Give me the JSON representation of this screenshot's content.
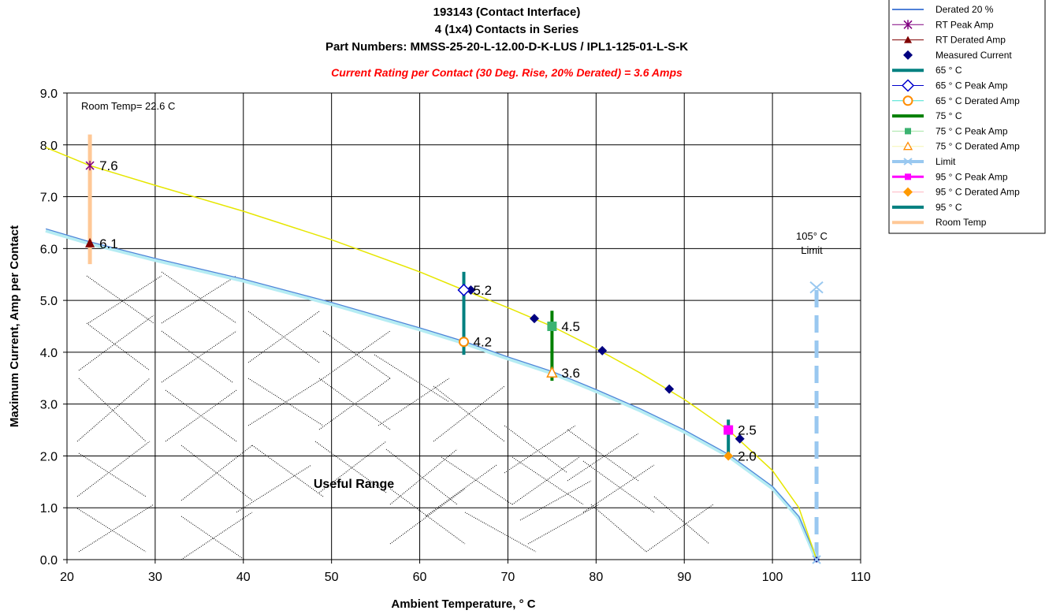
{
  "chart_data": {
    "type": "line",
    "title": [
      "193143 (Contact Interface)",
      "4 (1x4) Contacts in Series",
      "Part Numbers: MMSS-25-20-L-12.00-D-K-LUS / IPL1-125-01-L-S-K"
    ],
    "subtitle": "Current Rating per Contact (30 Deg. Rise, 20% Derated) = 3.6 Amps",
    "xlabel": "Ambient Temperature, ° C",
    "ylabel": "Maximum Current, Amp per Contact",
    "xlim": [
      20,
      110
    ],
    "ylim": [
      0,
      9
    ],
    "x_ticks": [
      "20",
      "30",
      "40",
      "50",
      "60",
      "70",
      "80",
      "90",
      "100",
      "110"
    ],
    "y_ticks": [
      "0.0",
      "1.0",
      "2.0",
      "3.0",
      "4.0",
      "5.0",
      "6.0",
      "7.0",
      "8.0",
      "9.0"
    ],
    "grid": true,
    "legend_position": "top-right",
    "legend": [
      "Derated 20 %",
      "RT Peak Amp",
      "RT Derated Amp",
      "Measured Current",
      "65 ° C",
      "65  ° C Peak Amp",
      "65  ° C Derated Amp",
      "75  ° C",
      "75  ° C Peak Amp",
      "75  ° C Derated Amp",
      "Limit",
      "95  ° C Peak Amp",
      "95  ° C Derated Amp",
      "95  ° C",
      "Room Temp"
    ],
    "annotations": {
      "room_temp": "Room Temp= 22.6 C",
      "limit_line1": "105° C",
      "limit_line2": "Limit",
      "useful_range": "Useful Range"
    },
    "series": [
      {
        "name": "Derated 20 %",
        "color": "#4f81d8",
        "x": [
          17.6,
          22.6,
          30,
          40,
          50,
          60,
          65,
          70,
          75,
          80,
          85,
          90,
          95,
          100,
          103,
          105
        ],
        "y": [
          6.35,
          6.1,
          5.78,
          5.38,
          4.93,
          4.44,
          4.18,
          3.88,
          3.6,
          3.25,
          2.88,
          2.47,
          2.0,
          1.38,
          0.8,
          0.0
        ]
      },
      {
        "name": "Peak curve",
        "color": "#e6e600",
        "x": [
          17.6,
          22.6,
          30,
          40,
          50,
          60,
          65,
          70,
          75,
          80,
          85,
          90,
          95,
          100,
          103,
          105
        ],
        "y": [
          7.95,
          7.6,
          7.22,
          6.72,
          6.17,
          5.55,
          5.2,
          4.86,
          4.5,
          4.07,
          3.6,
          3.09,
          2.5,
          1.72,
          1.0,
          0.0
        ]
      },
      {
        "name": "Measured Current",
        "color": "#000080",
        "marker": "diamond",
        "x": [
          65.8,
          73.0,
          80.7,
          88.3,
          96.3,
          105
        ],
        "y": [
          5.2,
          4.65,
          4.03,
          3.29,
          2.33,
          0.0
        ]
      },
      {
        "name": "RT Peak Amp",
        "color": "#800080",
        "marker": "star",
        "x": [
          22.6
        ],
        "y": [
          7.6
        ],
        "label": "7.6"
      },
      {
        "name": "RT Derated Amp",
        "color": "#800000",
        "marker": "triangle",
        "x": [
          22.6
        ],
        "y": [
          6.1
        ],
        "label": "6.1"
      },
      {
        "name": "65  ° C Peak Amp",
        "color": "#0000cc",
        "marker": "diamond-open",
        "x": [
          65
        ],
        "y": [
          5.2
        ],
        "label": "5.2"
      },
      {
        "name": "65  ° C Derated Amp",
        "color": "#ff8c00",
        "marker": "circle-open",
        "x": [
          65
        ],
        "y": [
          4.2
        ],
        "label": "4.2"
      },
      {
        "name": "75  ° C Peak Amp",
        "color": "#3cb371",
        "marker": "square",
        "x": [
          75
        ],
        "y": [
          4.5
        ],
        "label": "4.5"
      },
      {
        "name": "75  ° C Derated Amp",
        "color": "#ff8c00",
        "marker": "triangle-open",
        "x": [
          75
        ],
        "y": [
          3.6
        ],
        "label": "3.6"
      },
      {
        "name": "95  ° C Peak Amp",
        "color": "#ff00ff",
        "marker": "square",
        "x": [
          95
        ],
        "y": [
          2.5
        ],
        "label": "2.5"
      },
      {
        "name": "95  ° C Derated Amp",
        "color": "#ff9900",
        "marker": "diamond",
        "x": [
          95
        ],
        "y": [
          2.0
        ],
        "label": "2.0"
      },
      {
        "name": "65 ° C",
        "color": "#008080",
        "type": "vline",
        "x": 65,
        "y": [
          3.95,
          5.55
        ]
      },
      {
        "name": "75  ° C",
        "color": "#008000",
        "type": "vline",
        "x": 75,
        "y": [
          3.45,
          4.8
        ]
      },
      {
        "name": "95  ° C",
        "color": "#008080",
        "type": "vline",
        "x": 95,
        "y": [
          1.95,
          2.7
        ]
      },
      {
        "name": "Room Temp",
        "color": "#ffc896",
        "type": "vline",
        "x": 22.6,
        "y": [
          5.7,
          8.2
        ]
      },
      {
        "name": "Limit",
        "color": "#99c8f0",
        "type": "vline-dashed",
        "x": 105,
        "y": [
          0.0,
          5.25
        ]
      }
    ]
  }
}
